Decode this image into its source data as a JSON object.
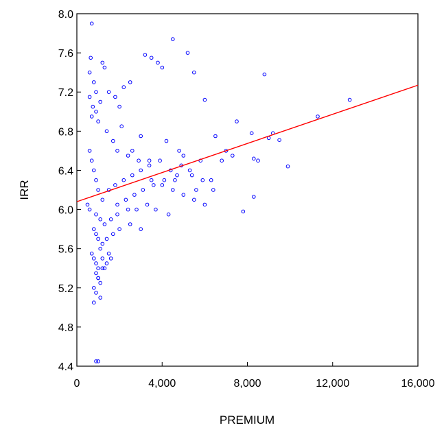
{
  "chart_data": {
    "type": "scatter",
    "xlabel": "PREMIUM",
    "ylabel": "IRR",
    "xlim": [
      0,
      16000
    ],
    "ylim": [
      4.4,
      8.0
    ],
    "x_ticks": [
      0,
      4000,
      8000,
      12000,
      16000
    ],
    "x_tick_labels": [
      "0",
      "4,000",
      "8,000",
      "12,000",
      "16,000"
    ],
    "y_ticks": [
      4.4,
      4.8,
      5.2,
      5.6,
      6.0,
      6.4,
      6.8,
      7.2,
      7.6,
      8.0
    ],
    "y_tick_labels": [
      "4.4",
      "4.8",
      "5.2",
      "5.6",
      "6.0",
      "6.4",
      "6.8",
      "7.2",
      "7.6",
      "8.0"
    ],
    "grid": false,
    "legend": "none",
    "colors": {
      "points": "#0000ff",
      "fit_line": "#ff0000",
      "axes": "#000000"
    },
    "fit_line": {
      "x": [
        0,
        16000
      ],
      "y": [
        6.08,
        7.27
      ]
    },
    "series": [
      {
        "x": [
          700,
          650,
          600,
          800,
          1200,
          1300,
          900,
          1100,
          1500,
          1800,
          2000,
          2200,
          2500,
          3200,
          3500,
          3800,
          4000,
          4500,
          5200,
          5500,
          6000,
          1000,
          1400,
          1700,
          2100,
          2600,
          3000,
          3400,
          4200,
          4800,
          5000,
          5800,
          6500,
          7000,
          7300,
          7500,
          6300,
          6800,
          5600,
          4600,
          8200,
          8300,
          8500,
          8800,
          9200,
          9000,
          9500,
          9900,
          8300,
          7800,
          11300,
          12800,
          600,
          700,
          800,
          900,
          1000,
          1200,
          1500,
          1800,
          2200,
          2600,
          3000,
          3500,
          4000,
          4500,
          5000,
          5500,
          6000,
          500,
          600,
          900,
          1100,
          1300,
          1600,
          1900,
          2400,
          2800,
          3300,
          3700,
          4300,
          800,
          900,
          1000,
          1100,
          1200,
          1400,
          1700,
          2000,
          2500,
          3000,
          700,
          800,
          900,
          1000,
          1200,
          1500,
          900,
          1000,
          1100,
          1300,
          1600,
          800,
          900,
          1000,
          1200,
          800,
          1100,
          1400,
          900,
          1000,
          700,
          900,
          600,
          750,
          1900,
          2300,
          2700,
          3100,
          3600,
          4100,
          4700,
          5300,
          1900,
          2400,
          2900,
          3400,
          3900,
          4400,
          4900,
          5400,
          5900,
          6400
        ],
        "y": [
          7.9,
          7.55,
          7.4,
          7.3,
          7.5,
          7.45,
          7.2,
          7.1,
          7.2,
          7.15,
          7.05,
          7.25,
          7.3,
          7.58,
          7.55,
          7.5,
          7.45,
          7.74,
          7.6,
          7.4,
          7.12,
          6.9,
          6.8,
          6.7,
          6.85,
          6.6,
          6.75,
          6.5,
          6.7,
          6.6,
          6.55,
          6.5,
          6.75,
          6.6,
          6.55,
          6.9,
          6.3,
          6.5,
          6.2,
          6.3,
          6.78,
          6.52,
          6.5,
          7.38,
          6.78,
          6.73,
          6.71,
          6.44,
          6.13,
          5.98,
          6.95,
          7.12,
          6.6,
          6.5,
          6.4,
          6.3,
          6.2,
          6.1,
          6.2,
          6.25,
          6.3,
          6.35,
          6.4,
          6.3,
          6.25,
          6.2,
          6.15,
          6.1,
          6.05,
          6.05,
          6.0,
          5.95,
          5.9,
          5.85,
          5.9,
          5.95,
          6.0,
          6.0,
          6.05,
          6.0,
          5.95,
          5.8,
          5.75,
          5.7,
          5.6,
          5.65,
          5.7,
          5.75,
          5.8,
          5.85,
          5.8,
          5.55,
          5.5,
          5.45,
          5.4,
          5.5,
          5.55,
          5.35,
          5.3,
          5.25,
          5.4,
          5.5,
          5.2,
          5.15,
          5.3,
          5.4,
          5.05,
          5.1,
          5.45,
          4.45,
          4.45,
          6.95,
          7.0,
          7.15,
          7.05,
          6.05,
          6.1,
          6.15,
          6.2,
          6.25,
          6.3,
          6.35,
          6.4,
          6.6,
          6.55,
          6.5,
          6.45,
          6.5,
          6.4,
          6.45,
          6.35,
          6.3,
          6.2
        ]
      }
    ]
  }
}
